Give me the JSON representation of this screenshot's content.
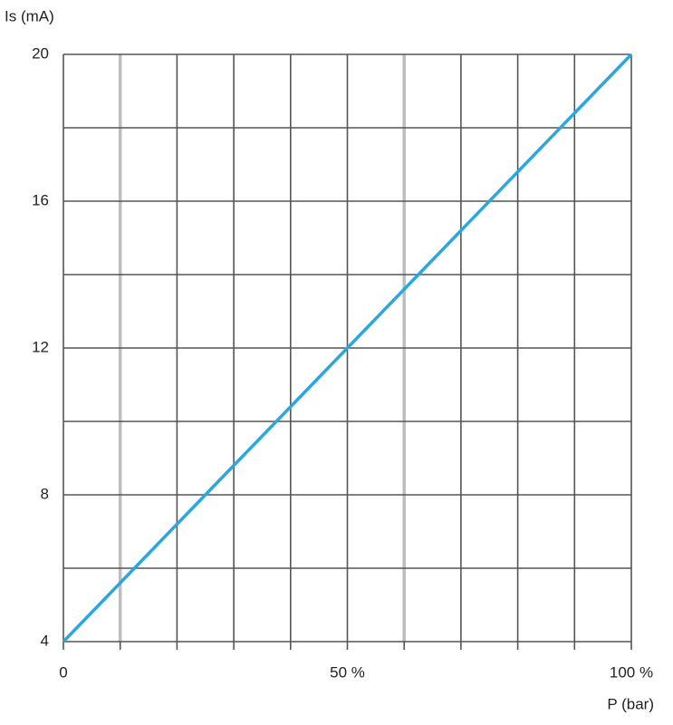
{
  "chart_data": {
    "type": "line",
    "y_label": "Is (mA)",
    "x_label": "P (bar)",
    "x": [
      0,
      100
    ],
    "series": [
      {
        "color": "#2aa7de",
        "values": [
          4,
          20
        ]
      }
    ],
    "xlim": [
      0,
      100
    ],
    "xticks": [
      0,
      {
        "value": 50,
        "label": "50 %"
      },
      {
        "value": 100,
        "label": "100 %"
      }
    ],
    "xminor": [
      10,
      20,
      30,
      40,
      60,
      70,
      80,
      90
    ],
    "x_highlight": [
      10,
      60
    ],
    "ylim": [
      4,
      20
    ],
    "yticks": [
      4,
      8,
      12,
      16,
      20
    ],
    "yminor": [
      6,
      10,
      14,
      18
    ],
    "grid": true
  }
}
